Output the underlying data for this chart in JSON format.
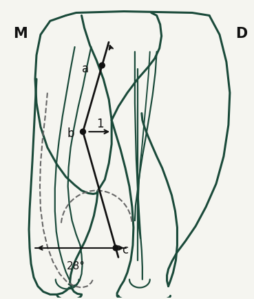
{
  "bg_color": "#f5f5f0",
  "tooth_color": "#1a4a3a",
  "black_color": "#111111",
  "gray_dash_color": "#666666",
  "label_M": "M",
  "label_D": "D",
  "label_a": "a",
  "label_b": "b",
  "label_c": "c",
  "label_1": "1",
  "angle_label": "28°",
  "figsize": [
    3.69,
    4.35
  ],
  "dpi": 100,
  "pt_a": [
    148,
    95
  ],
  "pt_b": [
    120,
    192
  ],
  "pt_c": [
    168,
    362
  ]
}
